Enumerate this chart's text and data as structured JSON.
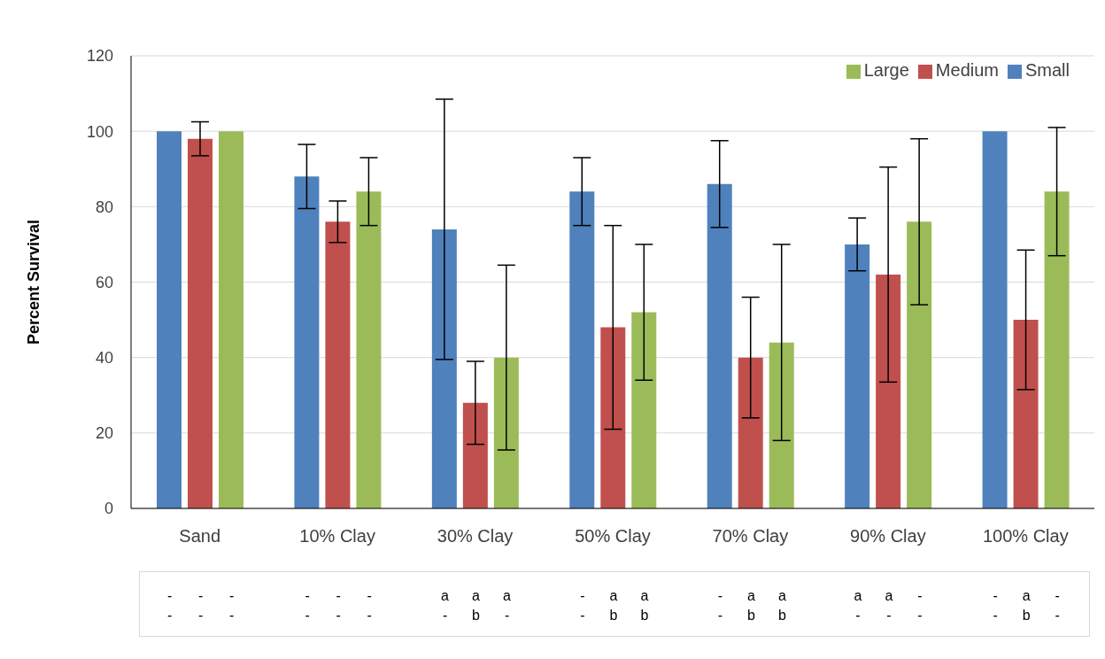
{
  "chart_data": {
    "type": "bar",
    "ylabel": "Percent Survival",
    "categories": [
      "Sand",
      "10% Clay",
      "30% Clay",
      "50% Clay",
      "70% Clay",
      "90% Clay",
      "100% Clay"
    ],
    "series": [
      {
        "name": "Small",
        "color": "#4f81bd",
        "values": [
          100,
          88,
          74,
          84,
          86,
          70,
          100
        ],
        "errors": [
          0,
          8.5,
          34.5,
          9,
          11.5,
          7,
          0
        ]
      },
      {
        "name": "Medium",
        "color": "#c0504d",
        "values": [
          98,
          76,
          28,
          48,
          40,
          62,
          50
        ],
        "errors": [
          4.5,
          5.5,
          11,
          27,
          16,
          28.5,
          18.5
        ]
      },
      {
        "name": "Large",
        "color": "#9bbb59",
        "values": [
          100,
          84,
          40,
          52,
          44,
          76,
          84
        ],
        "errors": [
          0,
          9,
          24.5,
          18,
          26,
          22,
          17
        ]
      }
    ],
    "ylim": [
      0,
      120
    ],
    "yticks": [
      0,
      20,
      40,
      60,
      80,
      100,
      120
    ],
    "grid": "y",
    "legend": "top right",
    "annotations": [
      "- - -",
      "- - -",
      "a a a",
      "- a a",
      "- a a",
      "a a -",
      "- a -",
      "- - -",
      "- - -",
      "- b -",
      "- b b",
      "- b b",
      "- - -",
      "- b -"
    ]
  }
}
